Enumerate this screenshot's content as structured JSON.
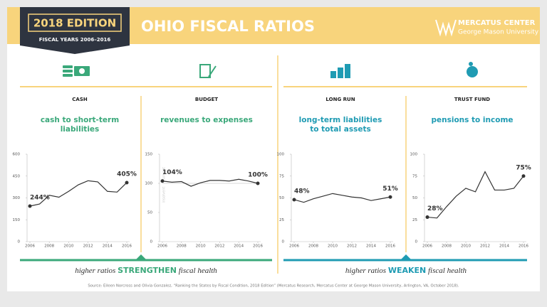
{
  "header": {
    "edition": "2018 EDITION",
    "years": "FISCAL YEARS 2006–2016",
    "title": "OHIO FISCAL RATIOS",
    "org": "MERCATUS CENTER",
    "org_sub": "George Mason University"
  },
  "chart_data": [
    {
      "type": "line",
      "category": "CASH",
      "title": [
        "cash to short-term",
        "liabilities"
      ],
      "color": "#3aa87a",
      "x": [
        2006,
        2007,
        2008,
        2009,
        2010,
        2011,
        2012,
        2013,
        2014,
        2015,
        2016
      ],
      "values": [
        244,
        258,
        318,
        305,
        345,
        390,
        418,
        410,
        345,
        340,
        405
      ],
      "value_labels": [
        "244%",
        null,
        null,
        null,
        null,
        null,
        null,
        null,
        null,
        null,
        "405%"
      ],
      "xlim": [
        2006,
        2016
      ],
      "xticks": [
        2006,
        2008,
        2010,
        2012,
        2014,
        2016
      ],
      "ylim": [
        0,
        600
      ],
      "yticks": [
        0,
        150,
        300,
        450,
        600
      ]
    },
    {
      "type": "line",
      "category": "BUDGET",
      "title": [
        "revenues to expenses"
      ],
      "color": "#3aa87a",
      "x": [
        2006,
        2007,
        2008,
        2009,
        2010,
        2011,
        2012,
        2013,
        2014,
        2015,
        2016
      ],
      "values": [
        104,
        102,
        103,
        95,
        101,
        105,
        105,
        104,
        107,
        104,
        100
      ],
      "value_labels": [
        "104%",
        null,
        null,
        null,
        null,
        null,
        null,
        null,
        null,
        null,
        "100%"
      ],
      "xlim": [
        2006,
        2016
      ],
      "xticks": [
        2006,
        2008,
        2010,
        2012,
        2014,
        2016
      ],
      "ylim": [
        0,
        150
      ],
      "yticks": [
        0,
        50,
        100,
        150
      ],
      "reference": 100,
      "zone_labels": [
        "solvent",
        "insolvent"
      ]
    },
    {
      "type": "line",
      "category": "LONG RUN",
      "title": [
        "long-term liabilities",
        "to total assets"
      ],
      "color": "#1f9bb3",
      "x": [
        2006,
        2007,
        2008,
        2009,
        2010,
        2011,
        2012,
        2013,
        2014,
        2015,
        2016
      ],
      "values": [
        48,
        45,
        49,
        52,
        55,
        53,
        51,
        50,
        47,
        49,
        51
      ],
      "value_labels": [
        "48%",
        null,
        null,
        null,
        null,
        null,
        null,
        null,
        null,
        null,
        "51%"
      ],
      "xlim": [
        2006,
        2016
      ],
      "xticks": [
        2006,
        2008,
        2010,
        2012,
        2014,
        2016
      ],
      "ylim": [
        0,
        100
      ],
      "yticks": [
        0,
        25,
        50,
        75,
        100
      ]
    },
    {
      "type": "line",
      "category": "TRUST FUND",
      "title": [
        "pensions to income"
      ],
      "color": "#1f9bb3",
      "x": [
        2006,
        2007,
        2008,
        2009,
        2010,
        2011,
        2012,
        2013,
        2014,
        2015,
        2016
      ],
      "values": [
        28,
        27,
        40,
        52,
        61,
        57,
        80,
        59,
        59,
        61,
        75
      ],
      "value_labels": [
        "28%",
        null,
        null,
        null,
        null,
        null,
        null,
        null,
        null,
        null,
        "75%"
      ],
      "xlim": [
        2006,
        2016
      ],
      "xticks": [
        2006,
        2008,
        2010,
        2012,
        2014,
        2016
      ],
      "ylim": [
        0,
        100
      ],
      "yticks": [
        0,
        25,
        50,
        75,
        100
      ]
    }
  ],
  "footer": {
    "left_pre": "higher ratios",
    "left_key": "STRENGTHEN",
    "left_post": "fiscal health",
    "right_pre": "higher ratios",
    "right_key": "WEAKEN",
    "right_post": "fiscal health",
    "source": "Source: Eileen Norcross and Olivia Gonzalez, “Ranking the States by Fiscal Condition, 2018 Edition” (Mercatus Research, Mercatus Center at George Mason University, Arlington, VA, October 2018)."
  }
}
